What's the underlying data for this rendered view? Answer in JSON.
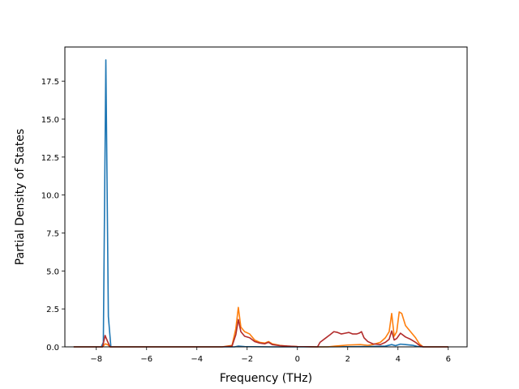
{
  "chart_data": {
    "type": "line",
    "title": "",
    "xlabel": "Frequency (THz)",
    "ylabel": "Partial Density of States",
    "xlim": [
      -9.25,
      6.75
    ],
    "ylim": [
      0,
      19.75
    ],
    "xticks": [
      -8,
      -6,
      -4,
      -2,
      0,
      2,
      4,
      6
    ],
    "xtick_labels": [
      "−8",
      "−6",
      "−4",
      "−2",
      "0",
      "2",
      "4",
      "6"
    ],
    "yticks": [
      0,
      2.5,
      5,
      7.5,
      10,
      12.5,
      15,
      17.5
    ],
    "ytick_labels": [
      "0.0",
      "2.5",
      "5.0",
      "7.5",
      "10.0",
      "12.5",
      "15.0",
      "17.5"
    ],
    "grid": false,
    "legend": "none",
    "series": [
      {
        "color": "#1f77b4",
        "points": [
          [
            -8.9,
            0
          ],
          [
            -7.8,
            0
          ],
          [
            -7.72,
            0.3
          ],
          [
            -7.62,
            18.9
          ],
          [
            -7.52,
            2.0
          ],
          [
            -7.42,
            0
          ],
          [
            -7.2,
            0
          ],
          [
            -3.0,
            0
          ],
          [
            -2.5,
            0
          ],
          [
            -2.35,
            0.05
          ],
          [
            -2.1,
            0.02
          ],
          [
            -1.0,
            0
          ],
          [
            1.0,
            0
          ],
          [
            2.5,
            0.02
          ],
          [
            3.0,
            0.03
          ],
          [
            3.5,
            0.05
          ],
          [
            3.75,
            0.15
          ],
          [
            3.9,
            0.08
          ],
          [
            4.1,
            0.18
          ],
          [
            4.3,
            0.15
          ],
          [
            4.6,
            0.1
          ],
          [
            4.8,
            0.02
          ],
          [
            5.0,
            0
          ],
          [
            6.0,
            0
          ]
        ]
      },
      {
        "color": "#ff7f0e",
        "points": [
          [
            -8.9,
            0
          ],
          [
            -7.75,
            0
          ],
          [
            -7.65,
            0.2
          ],
          [
            -7.55,
            0.15
          ],
          [
            -7.45,
            0
          ],
          [
            -3.0,
            0
          ],
          [
            -2.6,
            0.1
          ],
          [
            -2.45,
            1.2
          ],
          [
            -2.35,
            2.6
          ],
          [
            -2.25,
            1.3
          ],
          [
            -2.1,
            1.0
          ],
          [
            -1.9,
            0.85
          ],
          [
            -1.7,
            0.45
          ],
          [
            -1.5,
            0.3
          ],
          [
            -1.3,
            0.25
          ],
          [
            -1.15,
            0.35
          ],
          [
            -1.0,
            0.2
          ],
          [
            -0.7,
            0.1
          ],
          [
            -0.4,
            0.05
          ],
          [
            0,
            0.02
          ],
          [
            0.8,
            0
          ],
          [
            1.2,
            0
          ],
          [
            1.5,
            0.05
          ],
          [
            2.0,
            0.12
          ],
          [
            2.5,
            0.15
          ],
          [
            2.8,
            0.1
          ],
          [
            3.0,
            0.15
          ],
          [
            3.3,
            0.3
          ],
          [
            3.5,
            0.6
          ],
          [
            3.65,
            1.0
          ],
          [
            3.75,
            2.2
          ],
          [
            3.85,
            0.7
          ],
          [
            3.95,
            1.0
          ],
          [
            4.05,
            2.3
          ],
          [
            4.15,
            2.2
          ],
          [
            4.3,
            1.4
          ],
          [
            4.5,
            1.0
          ],
          [
            4.7,
            0.6
          ],
          [
            4.85,
            0.2
          ],
          [
            5.0,
            0
          ],
          [
            6.0,
            0
          ]
        ]
      },
      {
        "color": "#b22c2c",
        "points": [
          [
            -8.9,
            0
          ],
          [
            -7.75,
            0
          ],
          [
            -7.65,
            0.75
          ],
          [
            -7.55,
            0.35
          ],
          [
            -7.45,
            0
          ],
          [
            -3.0,
            0
          ],
          [
            -2.6,
            0.05
          ],
          [
            -2.45,
            0.8
          ],
          [
            -2.35,
            1.8
          ],
          [
            -2.25,
            1.0
          ],
          [
            -2.1,
            0.7
          ],
          [
            -1.9,
            0.6
          ],
          [
            -1.7,
            0.35
          ],
          [
            -1.5,
            0.25
          ],
          [
            -1.3,
            0.2
          ],
          [
            -1.15,
            0.3
          ],
          [
            -1.0,
            0.15
          ],
          [
            -0.7,
            0.08
          ],
          [
            -0.4,
            0.05
          ],
          [
            0,
            0.02
          ],
          [
            0.8,
            0
          ],
          [
            0.9,
            0.3
          ],
          [
            1.1,
            0.55
          ],
          [
            1.3,
            0.8
          ],
          [
            1.45,
            1.0
          ],
          [
            1.6,
            0.95
          ],
          [
            1.75,
            0.85
          ],
          [
            1.9,
            0.9
          ],
          [
            2.05,
            0.95
          ],
          [
            2.2,
            0.85
          ],
          [
            2.35,
            0.85
          ],
          [
            2.45,
            0.9
          ],
          [
            2.55,
            1.0
          ],
          [
            2.65,
            0.6
          ],
          [
            2.8,
            0.35
          ],
          [
            3.0,
            0.2
          ],
          [
            3.3,
            0.15
          ],
          [
            3.5,
            0.3
          ],
          [
            3.65,
            0.5
          ],
          [
            3.75,
            1.05
          ],
          [
            3.85,
            0.45
          ],
          [
            3.95,
            0.55
          ],
          [
            4.1,
            0.9
          ],
          [
            4.3,
            0.65
          ],
          [
            4.5,
            0.5
          ],
          [
            4.7,
            0.3
          ],
          [
            4.85,
            0.1
          ],
          [
            5.0,
            0
          ],
          [
            6.0,
            0
          ]
        ]
      }
    ]
  }
}
